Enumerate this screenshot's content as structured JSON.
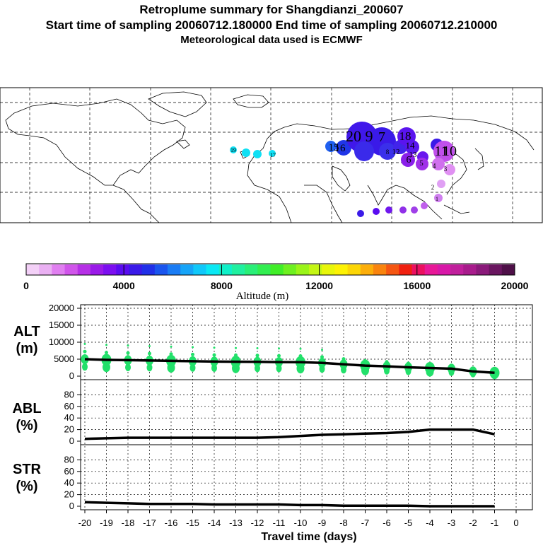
{
  "header": {
    "title": "Retroplume summary for Shangdianzi_200607",
    "sampling": "Start time of sampling 20060712.180000     End time of sampling 20060712.210000",
    "meteo": "Meteorological data used is ECMWF"
  },
  "chart_data": [
    {
      "type": "map",
      "title": "Retroplume map",
      "plume_labels": [
        "20",
        "9",
        "7",
        "18",
        "16",
        "15",
        "14",
        "13",
        "12",
        "11",
        "10",
        "8",
        "6",
        "5",
        "4",
        "3",
        "2",
        "1",
        "19",
        "17"
      ]
    },
    {
      "type": "colorbar",
      "xlabel": "Altitude (m)",
      "range": [
        0,
        20000
      ],
      "tick_labels": [
        "0",
        "4000",
        "8000",
        "12000",
        "16000",
        "20000"
      ],
      "colors": [
        "#f3d0f7",
        "#eab0f3",
        "#e07ff0",
        "#d055ea",
        "#b630e6",
        "#9a1ae8",
        "#7c0ff0",
        "#5a0cf0",
        "#3a1ae8",
        "#2030e8",
        "#1a55ee",
        "#1a7cf4",
        "#16a4f8",
        "#10c8fa",
        "#0ae8f4",
        "#10f0c8",
        "#20f0a0",
        "#2aef78",
        "#32ee50",
        "#40ee28",
        "#6ef020",
        "#9af418",
        "#c4f614",
        "#e8f60a",
        "#fdf204",
        "#fcd606",
        "#fcae0a",
        "#f9840e",
        "#f55612",
        "#f02010",
        "#ec1060",
        "#e81898",
        "#d818a8",
        "#c0209c",
        "#a81c8c",
        "#8a1a7a",
        "#6a1660",
        "#4e1048"
      ]
    },
    {
      "type": "line",
      "title": "ALT",
      "ylabel": "ALT (m)",
      "xlabel": "Travel time (days)",
      "x": [
        -20,
        -19,
        -18,
        -17,
        -16,
        -15,
        -14,
        -13,
        -12,
        -11,
        -10,
        -9,
        -8,
        -7,
        -6,
        -5,
        -4,
        -3,
        -2,
        -1
      ],
      "values": [
        5000,
        4800,
        4700,
        4600,
        4500,
        4400,
        4300,
        4250,
        4200,
        4150,
        4100,
        3900,
        3500,
        3100,
        2900,
        2600,
        2400,
        2200,
        1400,
        1000
      ],
      "ylim": [
        0,
        20000
      ],
      "yticks": [
        "20000",
        "15000",
        "10000",
        "5000",
        "0"
      ]
    },
    {
      "type": "line",
      "title": "ABL",
      "ylabel": "ABL (%)",
      "xlabel": "Travel time (days)",
      "x": [
        -20,
        -19,
        -18,
        -17,
        -16,
        -15,
        -14,
        -13,
        -12,
        -11,
        -10,
        -9,
        -8,
        -7,
        -6,
        -5,
        -4,
        -3,
        -2,
        -1
      ],
      "values": [
        4,
        5,
        6,
        6,
        6,
        6,
        6,
        6,
        6,
        7,
        9,
        11,
        12,
        13,
        14,
        16,
        20,
        20,
        20,
        12
      ],
      "ylim": [
        0,
        100
      ],
      "yticks": [
        "80",
        "60",
        "40",
        "20",
        "0"
      ]
    },
    {
      "type": "line",
      "title": "STR",
      "ylabel": "STR (%)",
      "xlabel": "Travel time (days)",
      "x": [
        -20,
        -19,
        -18,
        -17,
        -16,
        -15,
        -14,
        -13,
        -12,
        -11,
        -10,
        -9,
        -8,
        -7,
        -6,
        -5,
        -4,
        -3,
        -2,
        -1
      ],
      "values": [
        7,
        6,
        5,
        4,
        4,
        4,
        3,
        3,
        3,
        3,
        2,
        2,
        1,
        1,
        1,
        1,
        0,
        0,
        0,
        0
      ],
      "ylim": [
        0,
        100
      ],
      "yticks": [
        "80",
        "60",
        "40",
        "20",
        "0"
      ],
      "xticks": [
        "-20",
        "-19",
        "-18",
        "-17",
        "-16",
        "-15",
        "-14",
        "-13",
        "-12",
        "-11",
        "-10",
        "-9",
        "-8",
        "-7",
        "-6",
        "-5",
        "-4",
        "-3",
        "-2",
        "-1",
        "0"
      ]
    }
  ],
  "labels": {
    "alt_a": "ALT",
    "alt_b": "(m)",
    "abl_a": "ABL",
    "abl_b": "(%)",
    "str_a": "STR",
    "str_b": "(%)",
    "xlabel": "Travel time (days)",
    "colorbar_label": "Altitude (m)"
  },
  "colors": {
    "dots": "#22e06a",
    "line": "#000000"
  }
}
